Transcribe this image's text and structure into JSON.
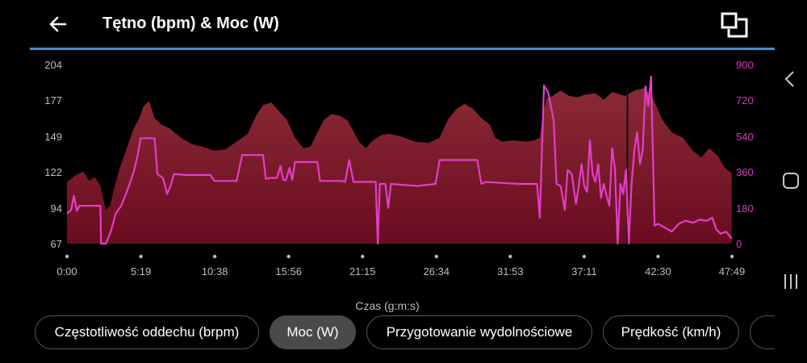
{
  "header": {
    "title": "Tętno (bpm) & Moc (W)",
    "back_icon": "arrow-left-icon",
    "expand_icon": "expand-squares-icon",
    "accent": "#3d8fd6"
  },
  "chart_data": {
    "type": "area",
    "xlabel": "Czas (g:m:s)",
    "x_ticks": [
      "0:00",
      "5:19",
      "10:38",
      "15:56",
      "21:15",
      "26:34",
      "31:53",
      "37:11",
      "42:30",
      "47:49"
    ],
    "x_range_min": [
      0,
      47.817
    ],
    "y_left": {
      "ticks": [
        "204",
        "177",
        "149",
        "122",
        "94",
        "67"
      ],
      "range": [
        67,
        204
      ],
      "unit": "bpm"
    },
    "y_right": {
      "ticks": [
        "900",
        "720",
        "540",
        "360",
        "180",
        "0"
      ],
      "range": [
        0,
        900
      ],
      "unit": "W"
    },
    "colors": {
      "heart_rate_fill": "#7a1428",
      "power_line": "#e23ec8",
      "right_axis_text": "#d63ac6",
      "left_axis_text": "#bdbdbd"
    },
    "series": [
      {
        "axis": "left",
        "style": "area",
        "points": [
          [
            0,
            114
          ],
          [
            0.7,
            120
          ],
          [
            1.2,
            122
          ],
          [
            1.6,
            115
          ],
          [
            2.0,
            118
          ],
          [
            2.4,
            111
          ],
          [
            2.6,
            102
          ],
          [
            2.8,
            93
          ],
          [
            3.1,
            96
          ],
          [
            3.4,
            110
          ],
          [
            3.8,
            125
          ],
          [
            4.3,
            140
          ],
          [
            4.8,
            155
          ],
          [
            5.2,
            163
          ],
          [
            5.5,
            172
          ],
          [
            5.9,
            176
          ],
          [
            6.3,
            163
          ],
          [
            6.8,
            158
          ],
          [
            7.4,
            155
          ],
          [
            8.2,
            148
          ],
          [
            9.0,
            143
          ],
          [
            9.8,
            141
          ],
          [
            10.6,
            138
          ],
          [
            11.4,
            139
          ],
          [
            12.2,
            145
          ],
          [
            13.0,
            151
          ],
          [
            13.6,
            165
          ],
          [
            14.1,
            173
          ],
          [
            14.7,
            175
          ],
          [
            15.2,
            169
          ],
          [
            15.8,
            162
          ],
          [
            16.4,
            148
          ],
          [
            17.0,
            140
          ],
          [
            17.5,
            141
          ],
          [
            18.0,
            152
          ],
          [
            18.5,
            162
          ],
          [
            19.0,
            166
          ],
          [
            19.6,
            165
          ],
          [
            20.2,
            161
          ],
          [
            20.6,
            153
          ],
          [
            21.0,
            145
          ],
          [
            21.5,
            140
          ],
          [
            22.0,
            146
          ],
          [
            22.6,
            150
          ],
          [
            23.2,
            151
          ],
          [
            24.0,
            149
          ],
          [
            25.0,
            145
          ],
          [
            26.0,
            144
          ],
          [
            26.8,
            148
          ],
          [
            27.4,
            162
          ],
          [
            28.0,
            170
          ],
          [
            28.6,
            174
          ],
          [
            29.2,
            170
          ],
          [
            29.8,
            163
          ],
          [
            30.4,
            158
          ],
          [
            30.8,
            148
          ],
          [
            31.3,
            145
          ],
          [
            32.0,
            146
          ],
          [
            33.0,
            145
          ],
          [
            33.6,
            146
          ],
          [
            34.0,
            148
          ],
          [
            34.2,
            165
          ],
          [
            34.5,
            178
          ],
          [
            34.9,
            180
          ],
          [
            35.5,
            184
          ],
          [
            36.1,
            180
          ],
          [
            36.7,
            179
          ],
          [
            37.3,
            181
          ],
          [
            38.0,
            182
          ],
          [
            38.6,
            177
          ],
          [
            39.2,
            183
          ],
          [
            40.1,
            180
          ],
          [
            40.8,
            184
          ],
          [
            41.5,
            186
          ],
          [
            42.1,
            179
          ],
          [
            42.8,
            162
          ],
          [
            43.5,
            152
          ],
          [
            44.3,
            148
          ],
          [
            45.0,
            138
          ],
          [
            45.6,
            133
          ],
          [
            46.2,
            140
          ],
          [
            46.8,
            134
          ],
          [
            47.3,
            125
          ],
          [
            47.8,
            121
          ]
        ]
      },
      {
        "axis": "right",
        "style": "line",
        "points": [
          [
            0,
            150
          ],
          [
            0.3,
            170
          ],
          [
            0.5,
            240
          ],
          [
            0.7,
            165
          ],
          [
            0.9,
            190
          ],
          [
            1.1,
            190
          ],
          [
            1.6,
            190
          ],
          [
            2.1,
            190
          ],
          [
            2.4,
            190
          ],
          [
            2.45,
            0
          ],
          [
            2.8,
            0
          ],
          [
            3.15,
            60
          ],
          [
            3.5,
            150
          ],
          [
            3.9,
            190
          ],
          [
            4.3,
            260
          ],
          [
            4.8,
            360
          ],
          [
            5.1,
            450
          ],
          [
            5.3,
            530
          ],
          [
            6.0,
            530
          ],
          [
            6.3,
            530
          ],
          [
            6.5,
            350
          ],
          [
            6.9,
            330
          ],
          [
            7.2,
            250
          ],
          [
            7.4,
            280
          ],
          [
            7.7,
            350
          ],
          [
            8.5,
            345
          ],
          [
            9.4,
            345
          ],
          [
            10.3,
            345
          ],
          [
            10.6,
            315
          ],
          [
            11.4,
            315
          ],
          [
            12.2,
            315
          ],
          [
            12.6,
            445
          ],
          [
            14.1,
            445
          ],
          [
            14.3,
            325
          ],
          [
            14.6,
            330
          ],
          [
            15.1,
            330
          ],
          [
            15.35,
            390
          ],
          [
            15.55,
            320
          ],
          [
            15.75,
            320
          ],
          [
            16.0,
            380
          ],
          [
            16.2,
            320
          ],
          [
            16.4,
            410
          ],
          [
            18.0,
            410
          ],
          [
            18.2,
            315
          ],
          [
            19.8,
            315
          ],
          [
            20.0,
            310
          ],
          [
            20.3,
            420
          ],
          [
            20.6,
            310
          ],
          [
            22.2,
            310
          ],
          [
            22.35,
            0
          ],
          [
            22.5,
            300
          ],
          [
            22.9,
            300
          ],
          [
            23.1,
            180
          ],
          [
            23.3,
            300
          ],
          [
            25.2,
            290
          ],
          [
            26.5,
            300
          ],
          [
            26.8,
            420
          ],
          [
            28.3,
            420
          ],
          [
            29.5,
            420
          ],
          [
            29.8,
            300
          ],
          [
            30.1,
            310
          ],
          [
            31.3,
            305
          ],
          [
            32.5,
            300
          ],
          [
            33.6,
            300
          ],
          [
            33.8,
            300
          ],
          [
            34.0,
            130
          ],
          [
            34.3,
            795
          ],
          [
            34.6,
            760
          ],
          [
            35.0,
            620
          ],
          [
            35.2,
            300
          ],
          [
            35.5,
            290
          ],
          [
            35.8,
            170
          ],
          [
            36.0,
            370
          ],
          [
            36.3,
            350
          ],
          [
            36.6,
            200
          ],
          [
            36.8,
            290
          ],
          [
            37.0,
            400
          ],
          [
            37.2,
            290
          ],
          [
            37.4,
            260
          ],
          [
            37.6,
            520
          ],
          [
            37.8,
            350
          ],
          [
            38.0,
            310
          ],
          [
            38.2,
            400
          ],
          [
            38.4,
            230
          ],
          [
            38.6,
            300
          ],
          [
            38.8,
            240
          ],
          [
            39.0,
            190
          ],
          [
            39.2,
            480
          ],
          [
            39.4,
            380
          ],
          [
            39.6,
            0
          ],
          [
            39.8,
            300
          ],
          [
            40.0,
            250
          ],
          [
            40.2,
            370
          ],
          [
            40.4,
            0
          ],
          [
            40.6,
            300
          ],
          [
            40.8,
            470
          ],
          [
            41.0,
            560
          ],
          [
            41.2,
            400
          ],
          [
            41.4,
            470
          ],
          [
            41.6,
            790
          ],
          [
            41.8,
            690
          ],
          [
            42.0,
            840
          ],
          [
            42.25,
            90
          ],
          [
            42.5,
            100
          ],
          [
            43.0,
            80
          ],
          [
            43.5,
            60
          ],
          [
            44.0,
            100
          ],
          [
            44.5,
            115
          ],
          [
            45.0,
            105
          ],
          [
            45.5,
            120
          ],
          [
            46.0,
            115
          ],
          [
            46.4,
            130
          ],
          [
            46.7,
            70
          ],
          [
            47.0,
            50
          ],
          [
            47.4,
            60
          ],
          [
            47.8,
            25
          ]
        ]
      },
      {
        "axis": "left",
        "style": "marker",
        "x_min": 40.3
      }
    ]
  },
  "chips": [
    {
      "label": "Częstotliwość oddechu (brpm)",
      "active": false
    },
    {
      "label": "Moc (W)",
      "active": true
    },
    {
      "label": "Przygotowanie wydolnościowe",
      "active": false
    },
    {
      "label": "Prędkość (km/h)",
      "active": false
    },
    {
      "label": "",
      "active": false
    }
  ],
  "nav": {
    "back_icon": "nav-back-chevron-icon",
    "home_icon": "nav-home-icon",
    "recents_icon": "nav-recents-icon"
  }
}
